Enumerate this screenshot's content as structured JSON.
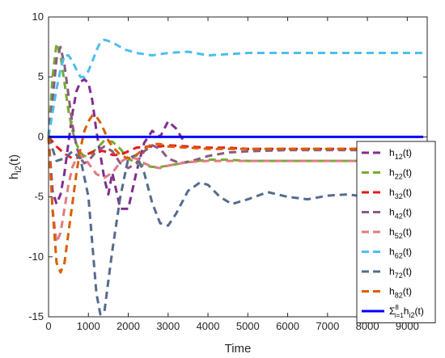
{
  "chart_data": {
    "type": "line",
    "xlabel": "Time",
    "ylabel": "h",
    "ylabel_sub": "i2",
    "ylabel_suffix": "(t)",
    "xlim": [
      0,
      9500
    ],
    "ylim": [
      -15,
      10
    ],
    "xticks": [
      0,
      1000,
      2000,
      3000,
      4000,
      5000,
      6000,
      7000,
      8000,
      9000
    ],
    "yticks": [
      -15,
      -10,
      -5,
      0,
      5,
      10
    ],
    "legend_position": "right",
    "series": [
      {
        "name": "h",
        "sub": "12",
        "suffix": "(t)",
        "color": "#7e2f8e",
        "style": "dashed",
        "x": [
          0,
          100,
          200,
          300,
          400,
          500,
          600,
          700,
          800,
          900,
          1000,
          1100,
          1200,
          1400,
          1500,
          1600,
          1800,
          2000,
          2200,
          2400,
          2600,
          2800,
          3000,
          3200,
          3400
        ],
        "y": [
          0,
          -4.5,
          -5.6,
          -4.8,
          -3,
          -0.5,
          2,
          3.8,
          4.6,
          4.8,
          4.5,
          3,
          0.5,
          -3.5,
          -4.8,
          -3,
          -6,
          -6,
          -3,
          -0.5,
          0.5,
          0,
          1.3,
          0.7,
          -0.4
        ]
      },
      {
        "name": "h",
        "sub": "22",
        "suffix": "(t)",
        "color": "#77ac30",
        "style": "dashed",
        "x": [
          0,
          100,
          200,
          300,
          400,
          500,
          600,
          700,
          800,
          900,
          1000,
          1200,
          1400,
          1600,
          1800,
          2000,
          2200,
          2400,
          2600,
          2800,
          3000,
          3500,
          4000,
          4500,
          5000,
          6000,
          7000,
          8000,
          9400
        ],
        "y": [
          0,
          5,
          7.8,
          6.8,
          4.5,
          2.2,
          0.5,
          -0.6,
          -1.3,
          -1.6,
          -1.6,
          -1,
          -0.3,
          -0.4,
          -1,
          -1.8,
          -2.2,
          -2.4,
          -2.5,
          -2.5,
          -2.4,
          -2.1,
          -1.9,
          -1.9,
          -2,
          -2,
          -2,
          -2,
          -2
        ]
      },
      {
        "name": "h",
        "sub": "32",
        "suffix": "(t)",
        "color": "#e41a1c",
        "style": "dashed",
        "x": [
          0,
          200,
          400,
          600,
          800,
          1000,
          1200,
          1400,
          1600,
          1800,
          2000,
          2200,
          2500,
          2800,
          3000,
          3500,
          4000,
          4500,
          5000,
          6000,
          7000,
          8000,
          9400
        ],
        "y": [
          0,
          -0.8,
          -1.4,
          -1.8,
          -1.7,
          -1.4,
          -1.1,
          -1.2,
          -1.5,
          -1.5,
          -1.2,
          -0.9,
          -0.8,
          -0.8,
          -0.7,
          -0.8,
          -0.9,
          -0.9,
          -1,
          -1,
          -1,
          -1,
          -1
        ]
      },
      {
        "name": "h",
        "sub": "42",
        "suffix": "(t)",
        "color": "#8b5a83",
        "style": "dashed",
        "x": [
          0,
          100,
          200,
          300,
          400,
          500,
          600,
          700,
          800,
          900,
          1000,
          1200,
          1400,
          1600,
          1800,
          2000,
          2200,
          2400,
          2600,
          2800,
          3000,
          3300,
          3600,
          4000,
          4500,
          5000,
          6000,
          7000,
          8000,
          9400
        ],
        "y": [
          0,
          3,
          6.5,
          7.5,
          6,
          3.5,
          1,
          -0.8,
          -1.8,
          -2.2,
          -2,
          -1.2,
          -0.8,
          -1.2,
          -2.2,
          -2.6,
          -2.2,
          -1.2,
          -0.7,
          -1,
          -1.8,
          -2.2,
          -2,
          -1.6,
          -1.3,
          -1.2,
          -1.1,
          -1.1,
          -1.1,
          -1.1
        ]
      },
      {
        "name": "h",
        "sub": "52",
        "suffix": "(t)",
        "color": "#e07b82",
        "style": "dashed",
        "x": [
          0,
          100,
          200,
          300,
          400,
          500,
          600,
          700,
          800,
          900,
          1000,
          1200,
          1400,
          1600,
          1800,
          2000,
          2200,
          2400,
          2600,
          2800,
          3000,
          3500,
          4000,
          4500,
          5000,
          6000,
          7000,
          8000,
          9400
        ],
        "y": [
          0,
          -6,
          -8.8,
          -8,
          -6,
          -4,
          -2.5,
          -1.8,
          -1.6,
          -1.7,
          -2.2,
          -3.1,
          -3.4,
          -3,
          -2.1,
          -1.7,
          -1.8,
          -2.2,
          -2.5,
          -2.6,
          -2.4,
          -2.1,
          -2,
          -2,
          -2,
          -2,
          -2,
          -2,
          -2
        ]
      },
      {
        "name": "h",
        "sub": "62",
        "suffix": "(t)",
        "color": "#4dbeee",
        "style": "dashed",
        "x": [
          0,
          100,
          200,
          300,
          400,
          500,
          600,
          700,
          800,
          900,
          1000,
          1100,
          1200,
          1300,
          1400,
          1500,
          1700,
          1900,
          2200,
          2600,
          3000,
          3500,
          4000,
          5000,
          6000,
          7000,
          8000,
          9400
        ],
        "y": [
          0,
          2,
          4,
          5.6,
          6.8,
          6.8,
          6.3,
          5.6,
          5,
          5,
          5.5,
          6.3,
          7.2,
          7.9,
          8.1,
          8,
          7.7,
          7.3,
          7,
          6.8,
          7,
          7.1,
          6.8,
          7,
          7,
          7,
          7,
          7
        ]
      },
      {
        "name": "h",
        "sub": "72",
        "suffix": "(t)",
        "color": "#556b8d",
        "style": "dashed",
        "x": [
          0,
          200,
          400,
          600,
          800,
          1000,
          1100,
          1200,
          1300,
          1400,
          1500,
          1600,
          1800,
          2000,
          2200,
          2400,
          2600,
          2800,
          3000,
          3200,
          3500,
          3800,
          4000,
          4300,
          4600,
          5000,
          5500,
          6000,
          6500,
          7000,
          7500,
          8000,
          9400
        ],
        "y": [
          0,
          -2,
          -1.8,
          -1.2,
          -1.8,
          -5,
          -9,
          -13,
          -14.8,
          -14.6,
          -12,
          -9.5,
          -5,
          -1.8,
          -1.5,
          -3,
          -5.5,
          -7.2,
          -7.4,
          -6.4,
          -4.5,
          -3.8,
          -4,
          -5,
          -5.6,
          -5.2,
          -4.6,
          -5,
          -5.2,
          -4.9,
          -4.8,
          -5,
          -5
        ]
      },
      {
        "name": "h",
        "sub": "82",
        "suffix": "(t)",
        "color": "#d95f02",
        "style": "dashed",
        "x": [
          0,
          100,
          200,
          300,
          400,
          500,
          600,
          700,
          800,
          900,
          1000,
          1100,
          1200,
          1300,
          1400,
          1500,
          1600,
          1800,
          2000,
          2200,
          2400,
          2600,
          2800,
          3000,
          3500,
          4000,
          5000,
          6000,
          7000,
          8000,
          9400
        ],
        "y": [
          0,
          -6,
          -10.5,
          -11.3,
          -10.5,
          -8,
          -5.5,
          -3,
          -1,
          0.5,
          1.3,
          1.8,
          1.7,
          1.2,
          0.5,
          -0.3,
          -0.8,
          -1.5,
          -1.8,
          -1.5,
          -1,
          -0.6,
          -0.6,
          -0.8,
          -0.9,
          -1,
          -1,
          -1,
          -1,
          -1,
          -1
        ]
      },
      {
        "name": "Σ",
        "sub": "i=1",
        "sup": "8",
        "mid": "h",
        "sub2": "i2",
        "suffix": "(t)",
        "color": "#0000ff",
        "style": "solid",
        "x": [
          0,
          9400
        ],
        "y": [
          0,
          0
        ]
      }
    ]
  }
}
